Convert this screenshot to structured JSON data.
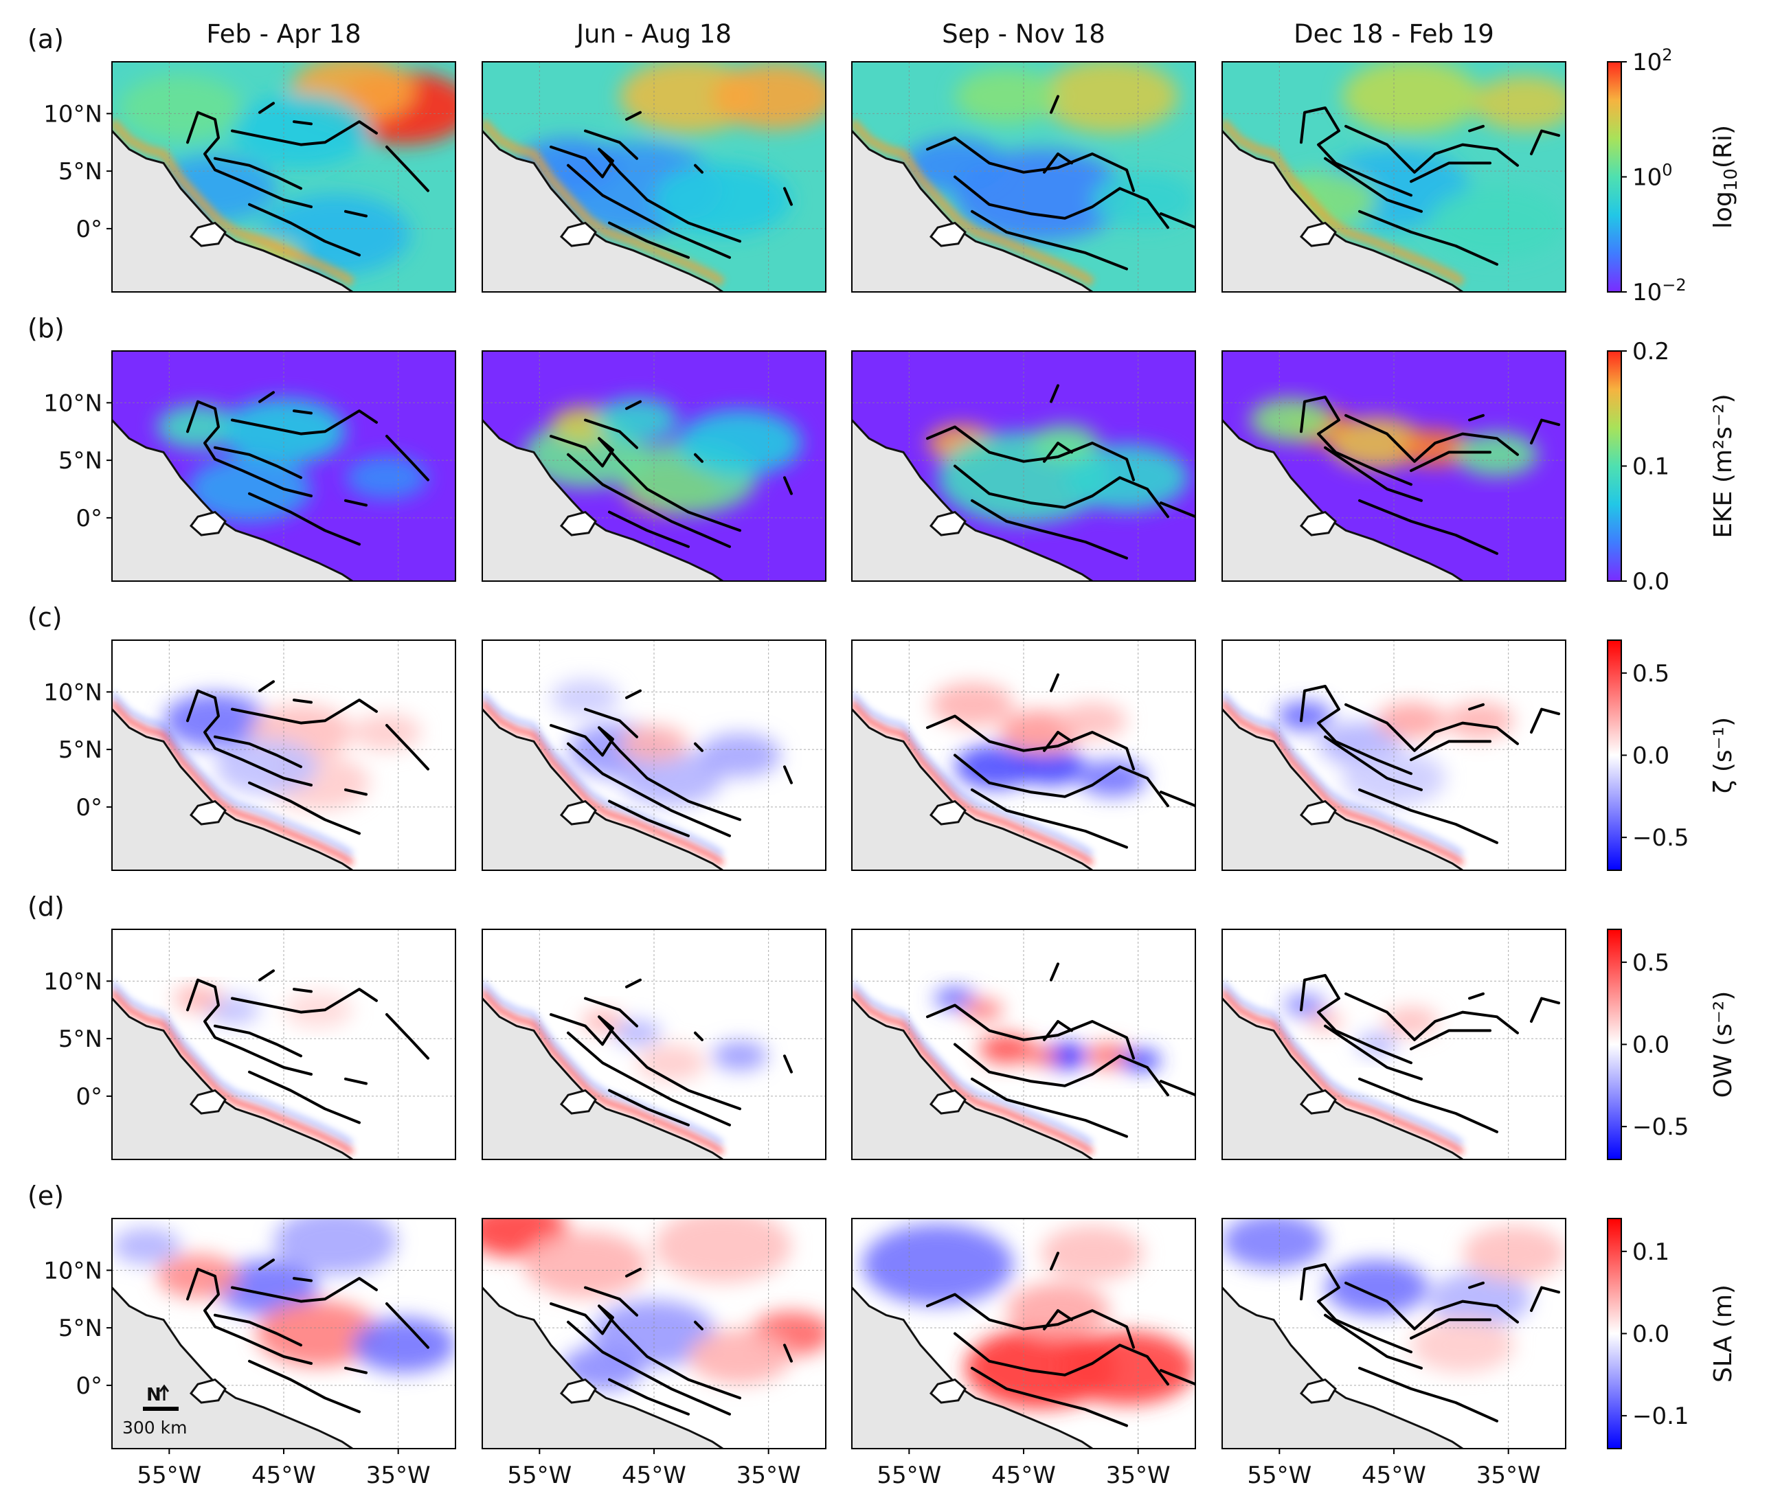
{
  "columns": [
    "Feb - Apr 18",
    "Jun - Aug 18",
    "Sep - Nov 18",
    "Dec 18 - Feb 19"
  ],
  "rows": [
    {
      "letter": "(a)",
      "colorbar": {
        "type": "log",
        "label_base": "log",
        "label_sub": "10",
        "label_tail": "(Ri)",
        "ticks": [
          {
            "value": 2,
            "base": "10",
            "exp": "2"
          },
          {
            "value": 0,
            "base": "10",
            "exp": "0"
          },
          {
            "value": -2,
            "base": "10",
            "exp": "−2"
          }
        ],
        "range": [
          -2,
          2
        ],
        "cmap": [
          "#7a2cff",
          "#3f7cff",
          "#22c7e6",
          "#4fe0b0",
          "#a8e25a",
          "#f6b340",
          "#ff2a1a"
        ]
      },
      "field": "ri"
    },
    {
      "letter": "(b)",
      "colorbar": {
        "type": "linear",
        "label": "EKE (m²s⁻²)",
        "ticks": [
          {
            "value": 0.2,
            "text": "0.2"
          },
          {
            "value": 0.1,
            "text": "0.1"
          },
          {
            "value": 0.0,
            "text": "0.0"
          }
        ],
        "range": [
          0.0,
          0.2
        ],
        "cmap": [
          "#7a2cff",
          "#3f7cff",
          "#22c7e6",
          "#4fe0b0",
          "#a8e25a",
          "#f6b340",
          "#ff2a1a"
        ]
      },
      "field": "eke"
    },
    {
      "letter": "(c)",
      "colorbar": {
        "type": "linear",
        "label": "ζ (s⁻¹)",
        "ticks": [
          {
            "value": 0.5,
            "text": "0.5"
          },
          {
            "value": 0.0,
            "text": "0.0"
          },
          {
            "value": -0.5,
            "text": "−0.5"
          }
        ],
        "range": [
          -0.7,
          0.7
        ],
        "cmap": [
          "#0000ff",
          "#8080ff",
          "#ffffff",
          "#ff8080",
          "#ff0000"
        ]
      },
      "field": "zeta"
    },
    {
      "letter": "(d)",
      "colorbar": {
        "type": "linear",
        "label": "OW (s⁻²)",
        "ticks": [
          {
            "value": 0.5,
            "text": "0.5"
          },
          {
            "value": 0.0,
            "text": "0.0"
          },
          {
            "value": -0.5,
            "text": "−0.5"
          }
        ],
        "range": [
          -0.7,
          0.7
        ],
        "cmap": [
          "#0000ff",
          "#8080ff",
          "#ffffff",
          "#ff8080",
          "#ff0000"
        ]
      },
      "field": "ow"
    },
    {
      "letter": "(e)",
      "colorbar": {
        "type": "linear",
        "label": "SLA (m)",
        "ticks": [
          {
            "value": 0.1,
            "text": "0.1"
          },
          {
            "value": 0.0,
            "text": "0.0"
          },
          {
            "value": -0.1,
            "text": "−0.1"
          }
        ],
        "range": [
          -0.14,
          0.14
        ],
        "cmap": [
          "#0000ff",
          "#8080ff",
          "#ffffff",
          "#ff8080",
          "#ff0000"
        ]
      },
      "field": "sla"
    }
  ],
  "lat_ticks": [
    {
      "value": 10,
      "text": "10°N"
    },
    {
      "value": 5,
      "text": "5°N"
    },
    {
      "value": 0,
      "text": "0°"
    }
  ],
  "lon_ticks": [
    {
      "value": -55,
      "text": "55°W"
    },
    {
      "value": -45,
      "text": "45°W"
    },
    {
      "value": -35,
      "text": "35°W"
    }
  ],
  "extent": {
    "lon": [
      -60,
      -30
    ],
    "lat": [
      -5.5,
      14.5
    ]
  },
  "scalebar": {
    "north": "N",
    "distance": "300 km"
  },
  "land_color": "#e6e6e6"
}
